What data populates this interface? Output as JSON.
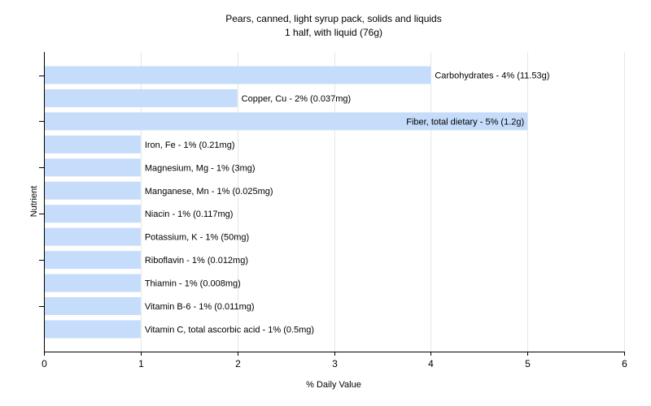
{
  "chart_data": {
    "type": "bar",
    "orientation": "horizontal",
    "title": "Pears, canned, light syrup pack, solids and liquids",
    "subtitle": "1 half, with liquid (76g)",
    "xlabel": "% Daily Value",
    "ylabel": "Nutrient",
    "xlim": [
      0,
      6
    ],
    "xticks": [
      "0",
      "1",
      "2",
      "3",
      "4",
      "5",
      "6"
    ],
    "grid": true,
    "bar_color": "#c5dcfb",
    "categories": [
      "Carbohydrates",
      "Copper, Cu",
      "Fiber, total dietary",
      "Iron, Fe",
      "Magnesium, Mg",
      "Manganese, Mn",
      "Niacin",
      "Potassium, K",
      "Riboflavin",
      "Thiamin",
      "Vitamin B-6",
      "Vitamin C, total ascorbic acid"
    ],
    "values": [
      4,
      2,
      5,
      1,
      1,
      1,
      1,
      1,
      1,
      1,
      1,
      1
    ],
    "labels": [
      "Carbohydrates - 4% (11.53g)",
      "Copper, Cu - 2% (0.037mg)",
      "Fiber, total dietary - 5% (1.2g)",
      "Iron, Fe - 1% (0.21mg)",
      "Magnesium, Mg - 1% (3mg)",
      "Manganese, Mn - 1% (0.025mg)",
      "Niacin - 1% (0.117mg)",
      "Potassium, K - 1% (50mg)",
      "Riboflavin - 1% (0.012mg)",
      "Thiamin - 1% (0.008mg)",
      "Vitamin B-6 - 1% (0.011mg)",
      "Vitamin C, total ascorbic acid - 1% (0.5mg)"
    ]
  }
}
